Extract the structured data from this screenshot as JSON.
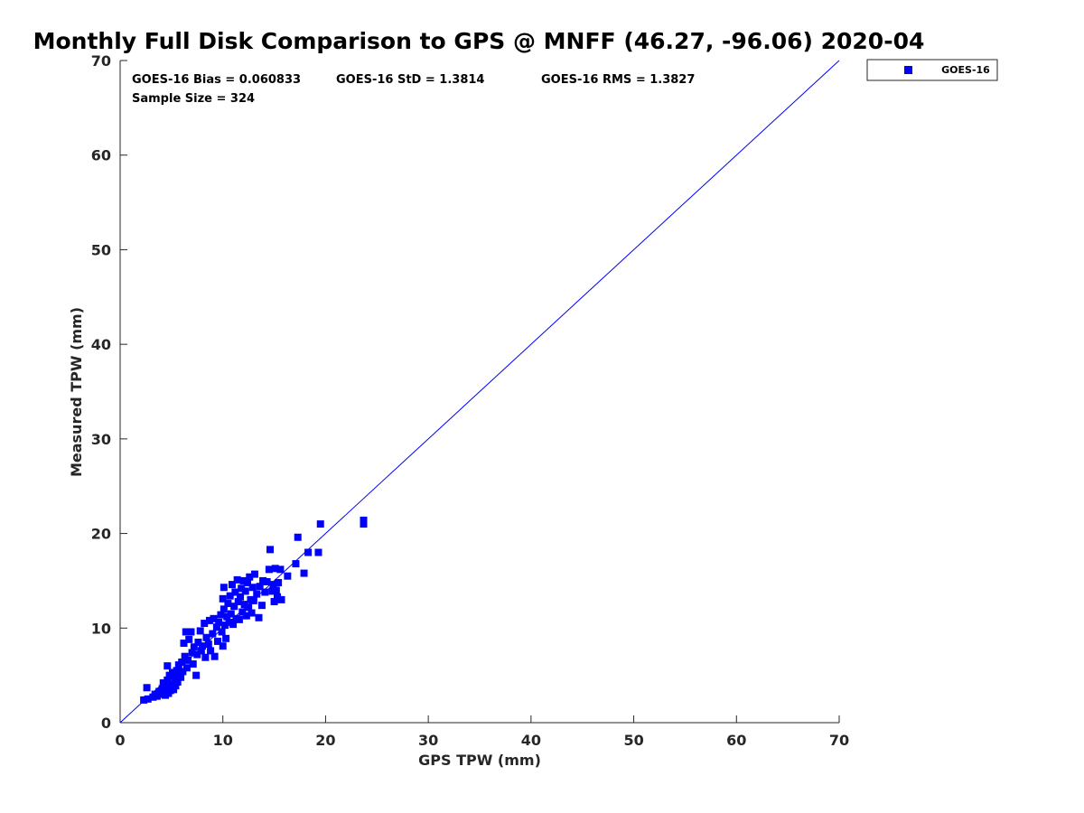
{
  "chart_data": {
    "type": "scatter",
    "title": "Monthly Full Disk Comparison to GPS @ MNFF (46.27, -96.06) 2020-04",
    "xlabel": "GPS TPW (mm)",
    "ylabel": "Measured TPW (mm)",
    "xlim": [
      0,
      70
    ],
    "ylim": [
      0,
      70
    ],
    "xticks": [
      "0",
      "10",
      "20",
      "30",
      "40",
      "50",
      "60",
      "70"
    ],
    "yticks": [
      "0",
      "10",
      "20",
      "30",
      "40",
      "50",
      "60",
      "70"
    ],
    "grid": false,
    "legend_position": "outside-top-right",
    "reference_line": {
      "x": [
        0,
        70
      ],
      "y": [
        0,
        70
      ],
      "color": "#0000ff"
    },
    "stats": {
      "bias": "GOES-16 Bias = 0.060833",
      "std": "GOES-16 StD = 1.3814",
      "rms": "GOES-16 RMS = 1.3827",
      "sample_size": "Sample Size = 324"
    },
    "series": [
      {
        "name": "GOES-16",
        "color": "#0000ff",
        "marker": "square",
        "points": [
          [
            2.3,
            2.4
          ],
          [
            2.7,
            2.5
          ],
          [
            2.6,
            3.7
          ],
          [
            3.2,
            2.7
          ],
          [
            3.4,
            3.0
          ],
          [
            3.6,
            2.8
          ],
          [
            3.8,
            3.3
          ],
          [
            4.0,
            3.0
          ],
          [
            4.1,
            3.6
          ],
          [
            4.2,
            4.2
          ],
          [
            4.4,
            2.9
          ],
          [
            4.5,
            3.8
          ],
          [
            4.6,
            4.5
          ],
          [
            4.7,
            3.1
          ],
          [
            4.8,
            5.0
          ],
          [
            4.9,
            3.4
          ],
          [
            5.0,
            4.0
          ],
          [
            5.1,
            5.3
          ],
          [
            5.2,
            3.5
          ],
          [
            5.3,
            4.6
          ],
          [
            4.6,
            6.0
          ],
          [
            5.4,
            3.9
          ],
          [
            5.5,
            5.5
          ],
          [
            5.6,
            4.3
          ],
          [
            5.7,
            6.1
          ],
          [
            5.8,
            5.0
          ],
          [
            5.9,
            4.8
          ],
          [
            6.0,
            6.4
          ],
          [
            6.1,
            5.4
          ],
          [
            6.2,
            8.4
          ],
          [
            6.3,
            7.0
          ],
          [
            6.4,
            9.6
          ],
          [
            6.5,
            5.8
          ],
          [
            6.6,
            6.6
          ],
          [
            6.7,
            8.8
          ],
          [
            6.9,
            9.6
          ],
          [
            7.0,
            7.4
          ],
          [
            7.1,
            6.2
          ],
          [
            7.2,
            8.0
          ],
          [
            7.4,
            5.0
          ],
          [
            7.5,
            7.2
          ],
          [
            7.6,
            8.5
          ],
          [
            7.8,
            9.7
          ],
          [
            7.9,
            7.6
          ],
          [
            8.0,
            8.1
          ],
          [
            8.2,
            10.5
          ],
          [
            8.3,
            6.9
          ],
          [
            8.4,
            9.0
          ],
          [
            8.6,
            8.3
          ],
          [
            8.7,
            10.8
          ],
          [
            8.8,
            7.6
          ],
          [
            9.0,
            9.4
          ],
          [
            9.1,
            11.0
          ],
          [
            9.2,
            7.0
          ],
          [
            9.4,
            10.1
          ],
          [
            9.5,
            8.6
          ],
          [
            9.6,
            10.6
          ],
          [
            9.8,
            11.4
          ],
          [
            9.9,
            9.6
          ],
          [
            10.0,
            8.1
          ],
          [
            10.1,
            12.0
          ],
          [
            10.2,
            10.3
          ],
          [
            10.0,
            13.1
          ],
          [
            10.1,
            14.3
          ],
          [
            10.3,
            8.9
          ],
          [
            10.4,
            11.2
          ],
          [
            10.5,
            12.6
          ],
          [
            10.6,
            10.6
          ],
          [
            10.7,
            13.4
          ],
          [
            10.8,
            11.5
          ],
          [
            10.9,
            14.6
          ],
          [
            11.0,
            10.4
          ],
          [
            11.1,
            12.3
          ],
          [
            11.2,
            13.8
          ],
          [
            11.3,
            11.0
          ],
          [
            11.4,
            15.1
          ],
          [
            11.5,
            12.8
          ],
          [
            11.6,
            10.9
          ],
          [
            11.7,
            13.3
          ],
          [
            11.8,
            14.2
          ],
          [
            11.9,
            11.7
          ],
          [
            12.0,
            15.0
          ],
          [
            12.1,
            12.5
          ],
          [
            12.2,
            13.9
          ],
          [
            12.3,
            11.3
          ],
          [
            12.4,
            14.8
          ],
          [
            12.5,
            12.2
          ],
          [
            12.6,
            15.4
          ],
          [
            12.7,
            13.0
          ],
          [
            12.8,
            11.6
          ],
          [
            12.9,
            14.3
          ],
          [
            13.0,
            12.9
          ],
          [
            13.1,
            15.7
          ],
          [
            13.3,
            13.6
          ],
          [
            13.5,
            11.1
          ],
          [
            13.6,
            14.4
          ],
          [
            13.8,
            12.4
          ],
          [
            13.9,
            15.0
          ],
          [
            14.1,
            13.8
          ],
          [
            14.3,
            14.9
          ],
          [
            14.5,
            16.2
          ],
          [
            14.6,
            18.3
          ],
          [
            14.8,
            13.9
          ],
          [
            14.9,
            14.6
          ],
          [
            15.0,
            12.8
          ],
          [
            15.1,
            16.3
          ],
          [
            15.2,
            14.0
          ],
          [
            15.3,
            13.3
          ],
          [
            15.4,
            14.8
          ],
          [
            15.6,
            16.2
          ],
          [
            15.7,
            13.0
          ],
          [
            16.3,
            15.5
          ],
          [
            17.1,
            16.8
          ],
          [
            17.3,
            19.6
          ],
          [
            17.9,
            15.8
          ],
          [
            18.3,
            18.0
          ],
          [
            19.3,
            18.0
          ],
          [
            19.5,
            21.0
          ],
          [
            23.7,
            21.0
          ],
          [
            23.7,
            21.4
          ]
        ]
      }
    ]
  }
}
